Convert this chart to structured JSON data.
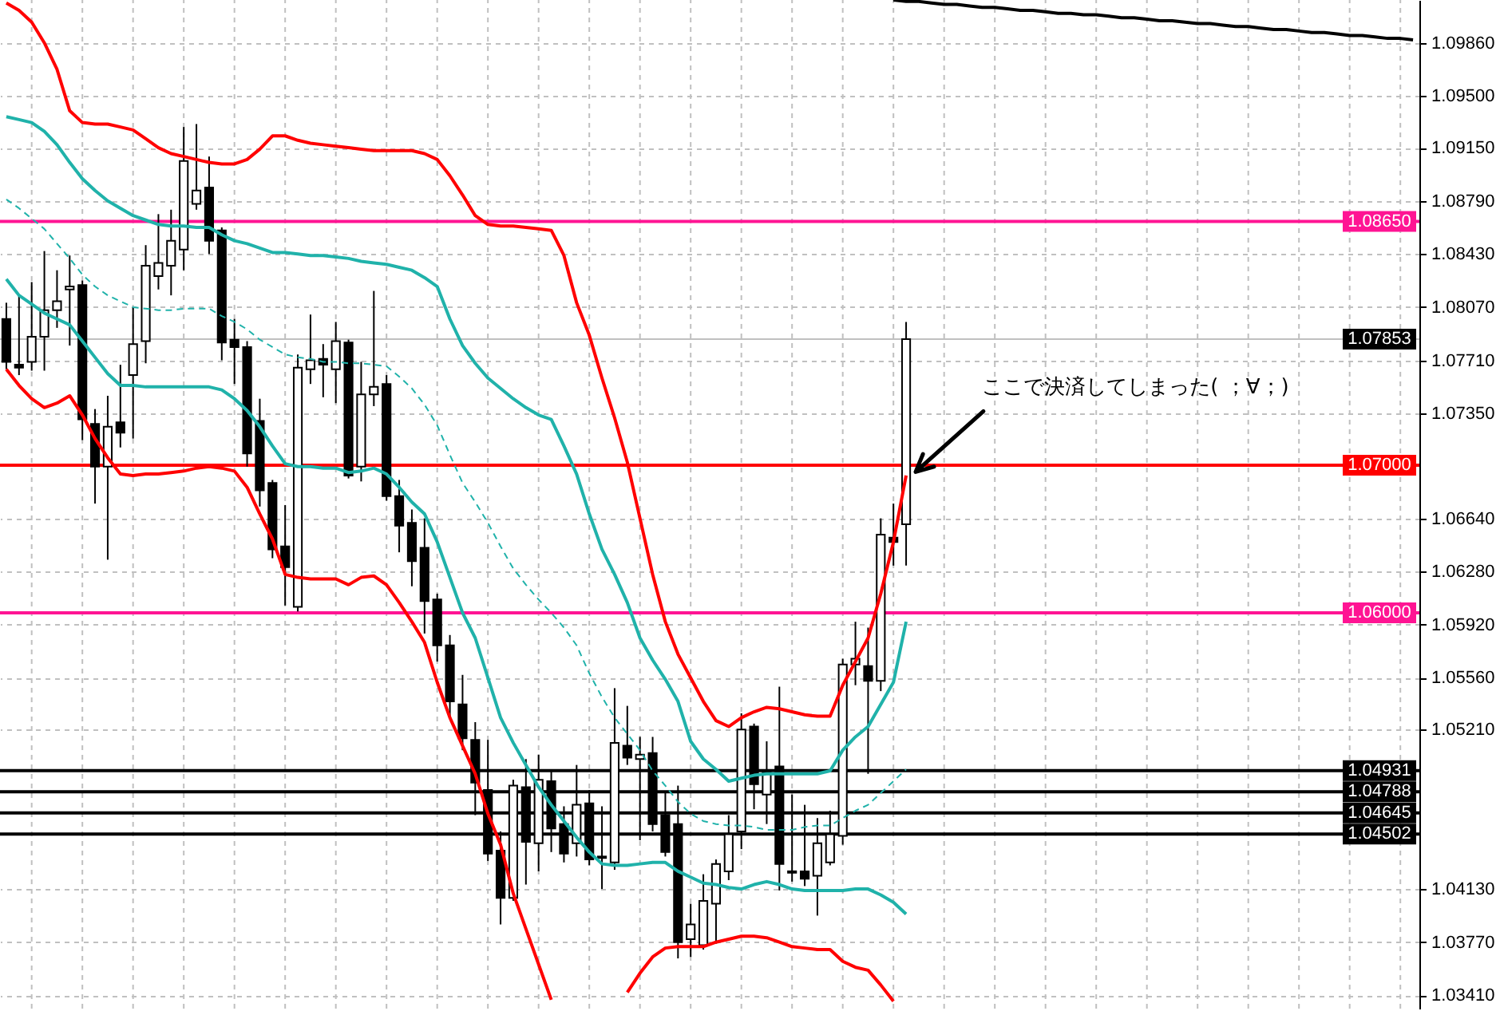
{
  "chart_data": {
    "type": "candlestick",
    "color": "#000000",
    "categories": [
      null,
      null,
      null,
      null,
      null,
      null,
      null,
      null,
      null,
      null,
      null,
      null,
      null,
      null,
      null,
      null,
      null,
      null,
      null,
      null,
      null,
      null,
      null,
      null,
      null,
      null,
      null,
      null,
      null,
      null,
      null,
      null,
      null,
      null,
      null,
      null,
      null,
      null,
      null,
      null,
      null,
      null,
      null,
      null,
      null,
      null,
      null,
      null,
      null,
      null,
      null,
      null,
      null,
      null,
      null,
      null,
      null,
      null,
      null,
      null,
      null,
      null,
      null,
      null,
      null,
      null,
      null,
      null,
      null,
      null,
      null,
      null,
      null,
      null,
      null,
      null,
      null,
      null,
      null,
      null,
      null,
      null,
      null,
      null,
      null,
      null,
      null,
      null,
      null,
      null,
      null,
      null,
      null,
      null,
      null,
      null,
      null,
      null,
      null,
      null,
      null,
      null,
      null,
      null,
      null,
      null,
      null,
      null,
      null,
      null,
      null,
      null
    ],
    "ohlc": [
      [
        1.0799,
        1.081,
        1.0765,
        1.077
      ],
      [
        1.0768,
        1.0815,
        1.0761,
        1.0766
      ],
      [
        1.077,
        1.0824,
        1.0764,
        1.0787
      ],
      [
        1.0787,
        1.0845,
        1.0764,
        1.0805
      ],
      [
        1.0805,
        1.0832,
        1.0793,
        1.0811
      ],
      [
        1.0819,
        1.0842,
        1.0781,
        1.0821
      ],
      [
        1.0822,
        1.0825,
        1.0717,
        1.0731
      ],
      [
        1.0728,
        1.0738,
        1.0674,
        1.0699
      ],
      [
        1.0699,
        1.0747,
        1.0636,
        1.0726
      ],
      [
        1.0729,
        1.0768,
        1.0712,
        1.0722
      ],
      [
        1.0761,
        1.0807,
        1.0718,
        1.0782
      ],
      [
        1.0784,
        1.0849,
        1.0769,
        1.0835
      ],
      [
        1.0828,
        1.087,
        1.0819,
        1.0837
      ],
      [
        1.0835,
        1.0873,
        1.0815,
        1.0852
      ],
      [
        1.0846,
        1.0929,
        1.0832,
        1.0906
      ],
      [
        1.0877,
        1.0931,
        1.0873,
        1.0886
      ],
      [
        1.0888,
        1.0909,
        1.0843,
        1.0852
      ],
      [
        1.0859,
        1.0861,
        1.0771,
        1.0783
      ],
      [
        1.0785,
        1.0799,
        1.0755,
        1.078
      ],
      [
        1.078,
        1.0784,
        1.0699,
        1.0708
      ],
      [
        1.073,
        1.0745,
        1.0672,
        1.0683
      ],
      [
        1.0688,
        1.069,
        1.0637,
        1.0643
      ],
      [
        1.0645,
        1.0673,
        1.0605,
        1.0631
      ],
      [
        1.0604,
        1.0775,
        1.0601,
        1.0766
      ],
      [
        1.0765,
        1.0802,
        1.0755,
        1.0771
      ],
      [
        1.0772,
        1.0782,
        1.0746,
        1.0768
      ],
      [
        1.0765,
        1.0797,
        1.0742,
        1.0784
      ],
      [
        1.0783,
        1.0785,
        1.0691,
        1.0693
      ],
      [
        1.0699,
        1.077,
        1.0689,
        1.0748
      ],
      [
        1.0748,
        1.0818,
        1.074,
        1.0753
      ],
      [
        1.0755,
        1.0761,
        1.0676,
        1.0679
      ],
      [
        1.0679,
        1.069,
        1.0641,
        1.0659
      ],
      [
        1.0661,
        1.067,
        1.0618,
        1.0635
      ],
      [
        1.0644,
        1.0664,
        1.0586,
        1.0608
      ],
      [
        1.0609,
        1.0613,
        1.0567,
        1.0578
      ],
      [
        1.0578,
        1.0585,
        1.0529,
        1.054
      ],
      [
        1.0538,
        1.0558,
        1.0507,
        1.0515
      ],
      [
        1.0514,
        1.0526,
        1.0463,
        1.0485
      ],
      [
        1.048,
        1.0514,
        1.0432,
        1.0437
      ],
      [
        1.0439,
        1.0452,
        1.0389,
        1.0407
      ],
      [
        1.0407,
        1.0487,
        1.0405,
        1.0483
      ],
      [
        1.0482,
        1.0501,
        1.0416,
        1.0445
      ],
      [
        1.0444,
        1.0504,
        1.0425,
        1.0487
      ],
      [
        1.0486,
        1.0493,
        1.0438,
        1.0454
      ],
      [
        1.0457,
        1.0469,
        1.0431,
        1.0437
      ],
      [
        1.0444,
        1.0497,
        1.0435,
        1.047
      ],
      [
        1.0471,
        1.048,
        1.0429,
        1.0433
      ],
      [
        1.0435,
        1.0469,
        1.0413,
        1.0434
      ],
      [
        1.0431,
        1.0549,
        1.0426,
        1.0512
      ],
      [
        1.051,
        1.0537,
        1.0497,
        1.0502
      ],
      [
        1.0501,
        1.0516,
        1.0446,
        1.0504
      ],
      [
        1.0505,
        1.0516,
        1.0452,
        1.0457
      ],
      [
        1.0463,
        1.0478,
        1.0435,
        1.0438
      ],
      [
        1.0457,
        1.0483,
        1.0366,
        1.0377
      ],
      [
        1.0379,
        1.0403,
        1.0367,
        1.0389
      ],
      [
        1.0375,
        1.0423,
        1.0372,
        1.0405
      ],
      [
        1.0403,
        1.0433,
        1.0376,
        1.043
      ],
      [
        1.0425,
        1.0463,
        1.0419,
        1.045
      ],
      [
        1.0452,
        1.0532,
        1.044,
        1.0521
      ],
      [
        1.0523,
        1.0525,
        1.0467,
        1.0484
      ],
      [
        1.0477,
        1.0513,
        1.0457,
        1.0492
      ],
      [
        1.0496,
        1.055,
        1.0412,
        1.043
      ],
      [
        1.0425,
        1.0477,
        1.0418,
        1.0424
      ],
      [
        1.0425,
        1.047,
        1.0415,
        1.042
      ],
      [
        1.0422,
        1.0461,
        1.0395,
        1.0444
      ],
      [
        1.0431,
        1.0466,
        1.0429,
        1.045
      ],
      [
        1.0449,
        1.0569,
        1.0443,
        1.0565
      ],
      [
        1.0565,
        1.0594,
        1.0551,
        1.0569
      ],
      [
        1.0564,
        1.059,
        1.0491,
        1.0554
      ],
      [
        1.0554,
        1.0664,
        1.0547,
        1.0653
      ],
      [
        1.0651,
        1.0674,
        1.0632,
        1.0648
      ],
      [
        1.066,
        1.0797,
        1.0632,
        1.07853
      ],
      null,
      null,
      null,
      null,
      null,
      null,
      null,
      null,
      null,
      null,
      null,
      null,
      null,
      null,
      null,
      null,
      null,
      null,
      null,
      null,
      null,
      null,
      null,
      null,
      null,
      null,
      null,
      null,
      null,
      null,
      null,
      null,
      null,
      null,
      null,
      null,
      null,
      null,
      null,
      null
    ],
    "series": [
      {
        "type": "line",
        "color": "#ff0000",
        "values": [
          1.1013,
          1.1008,
          1.1,
          1.0986,
          1.0968,
          1.094,
          1.0932,
          1.0931,
          1.0931,
          1.0929,
          1.0927,
          1.0921,
          1.0915,
          1.0911,
          1.0909,
          1.0907,
          1.0905,
          1.0904,
          1.0904,
          1.0907,
          1.0914,
          1.0923,
          1.0923,
          1.092,
          1.0918,
          1.0917,
          1.0916,
          1.0915,
          1.0914,
          1.0913,
          1.0913,
          1.0913,
          1.0913,
          1.0911,
          1.0907,
          1.0896,
          1.0883,
          1.0869,
          1.0863,
          1.0862,
          1.0862,
          1.0861,
          1.086,
          1.0859,
          1.0842,
          1.081,
          1.0788,
          1.0759,
          1.0732,
          1.0702,
          1.0664,
          1.0626,
          1.0594,
          1.0572,
          1.0556,
          1.054,
          1.0527,
          1.0523,
          1.0529,
          1.0533,
          1.0536,
          1.0535,
          1.0533,
          1.0531,
          1.053,
          1.053,
          1.0551,
          1.0567,
          1.0583,
          1.0613,
          1.0648,
          1.0693,
          null,
          null,
          null,
          null,
          null,
          null,
          null,
          null,
          null,
          null,
          null,
          null,
          null,
          null,
          null,
          null,
          null,
          null,
          null,
          null,
          null,
          null,
          null,
          null,
          null,
          null,
          null,
          null,
          null,
          null,
          null,
          null,
          null,
          null,
          null,
          null,
          null,
          null,
          null,
          null
        ]
      },
      {
        "type": "line",
        "color": "#20b2aa",
        "values": [
          1.0936,
          1.0934,
          1.0932,
          1.0926,
          1.0917,
          1.0905,
          1.0894,
          1.0886,
          1.0879,
          1.0874,
          1.0869,
          1.0866,
          1.0863,
          1.0862,
          1.0862,
          1.0861,
          1.0861,
          1.0856,
          1.0852,
          1.085,
          1.0847,
          1.0844,
          1.0844,
          1.0843,
          1.0842,
          1.0842,
          1.0841,
          1.084,
          1.0838,
          1.0837,
          1.0836,
          1.0834,
          1.0832,
          1.0827,
          1.0821,
          1.0799,
          1.0781,
          1.0769,
          1.0759,
          1.0752,
          1.0745,
          1.0739,
          1.0734,
          1.0731,
          1.0713,
          1.0694,
          1.0667,
          1.0643,
          1.0626,
          1.0607,
          1.0583,
          1.0568,
          1.0555,
          1.054,
          1.0513,
          1.0501,
          1.0494,
          1.0486,
          1.0488,
          1.049,
          1.0491,
          1.0491,
          1.0491,
          1.0491,
          1.0491,
          1.0493,
          1.0507,
          1.0516,
          1.0523,
          1.0538,
          1.0553,
          1.0594,
          null,
          null,
          null,
          null,
          null,
          null,
          null,
          null,
          null,
          null,
          null,
          null,
          null,
          null,
          null,
          null,
          null,
          null,
          null,
          null,
          null,
          null,
          null,
          null,
          null,
          null,
          null,
          null,
          null,
          null,
          null,
          null,
          null,
          null,
          null,
          null,
          null,
          null,
          null,
          null
        ]
      },
      {
        "type": "line",
        "color": "#20b2aa",
        "line_style": "dashed",
        "values": [
          1.088,
          1.0874,
          1.0867,
          1.086,
          1.085,
          1.084,
          1.0829,
          1.0821,
          1.0815,
          1.0811,
          1.0807,
          1.0806,
          1.0805,
          1.0805,
          1.0806,
          1.0806,
          1.0806,
          1.0801,
          1.0797,
          1.0792,
          1.0785,
          1.078,
          1.0775,
          1.0773,
          1.0772,
          1.077,
          1.077,
          1.0769,
          1.0769,
          1.0768,
          1.0767,
          1.076,
          1.0752,
          1.0741,
          1.0727,
          1.0707,
          1.0688,
          1.0675,
          1.0661,
          1.0645,
          1.063,
          1.0619,
          1.0609,
          1.06,
          1.059,
          1.0578,
          1.0559,
          1.0543,
          1.0529,
          1.0518,
          1.0507,
          1.0493,
          1.0483,
          1.0472,
          1.0464,
          1.0459,
          1.0457,
          1.0456,
          1.0456,
          1.0455,
          1.0453,
          1.0453,
          1.0453,
          1.0455,
          1.0456,
          1.0456,
          1.0461,
          1.0466,
          1.047,
          1.0478,
          1.0486,
          1.0494,
          null,
          null,
          null,
          null,
          null,
          null,
          null,
          null,
          null,
          null,
          null,
          null,
          null,
          null,
          null,
          null,
          null,
          null,
          null,
          null,
          null,
          null,
          null,
          null,
          null,
          null,
          null,
          null,
          null,
          null,
          null,
          null,
          null,
          null,
          null,
          null,
          null,
          null,
          null,
          null
        ]
      },
      {
        "type": "line",
        "color": "#20b2aa",
        "values": [
          1.0826,
          1.0815,
          1.0809,
          1.0803,
          1.0799,
          1.0795,
          1.0784,
          1.0773,
          1.0762,
          1.0754,
          1.0754,
          1.0753,
          1.0753,
          1.0753,
          1.0753,
          1.0753,
          1.0753,
          1.0751,
          1.0745,
          1.0737,
          1.0726,
          1.0713,
          1.0701,
          1.0699,
          1.0699,
          1.0698,
          1.0698,
          1.0695,
          1.0696,
          1.0698,
          1.0694,
          1.0685,
          1.0675,
          1.0667,
          1.0648,
          1.0624,
          1.06,
          1.0583,
          1.0556,
          1.0529,
          1.0512,
          1.0497,
          1.0482,
          1.047,
          1.0459,
          1.0448,
          1.0438,
          1.043,
          1.0429,
          1.0429,
          1.043,
          1.0431,
          1.0431,
          1.0425,
          1.0421,
          1.0417,
          1.0416,
          1.0414,
          1.0413,
          1.0416,
          1.0418,
          1.0416,
          1.0413,
          1.0412,
          1.0412,
          1.0412,
          1.0412,
          1.0413,
          1.0413,
          1.0409,
          1.0404,
          1.0396,
          null,
          null,
          null,
          null,
          null,
          null,
          null,
          null,
          null,
          null,
          null,
          null,
          null,
          null,
          null,
          null,
          null,
          null,
          null,
          null,
          null,
          null,
          null,
          null,
          null,
          null,
          null,
          null,
          null,
          null,
          null,
          null,
          null,
          null,
          null,
          null,
          null,
          null,
          null,
          null
        ]
      },
      {
        "type": "line",
        "color": "#ff0000",
        "values": [
          1.0765,
          1.0754,
          1.0745,
          1.0739,
          1.0742,
          1.0747,
          1.0734,
          1.0718,
          1.0705,
          1.0694,
          1.0693,
          1.0694,
          1.0694,
          1.0695,
          1.0696,
          1.0698,
          1.0699,
          1.0698,
          1.0696,
          1.0685,
          1.0667,
          1.065,
          1.0626,
          1.0624,
          1.0623,
          1.0623,
          1.0623,
          1.0619,
          1.0624,
          1.0625,
          1.0619,
          1.0607,
          1.0594,
          1.058,
          1.0553,
          1.0529,
          1.051,
          1.0491,
          1.0464,
          1.0443,
          1.041,
          1.0386,
          1.0362,
          1.0338,
          null,
          null,
          null,
          null,
          null,
          1.0343,
          1.0356,
          1.0367,
          1.0373,
          1.0374,
          1.0374,
          1.0374,
          1.0377,
          1.0379,
          1.0381,
          1.0381,
          1.038,
          1.0377,
          1.0374,
          1.0373,
          1.0372,
          1.0372,
          1.0364,
          1.036,
          1.0358,
          1.0348,
          1.0337,
          null,
          null,
          null,
          null,
          null,
          null,
          null,
          null,
          null,
          null,
          null,
          null,
          null,
          null,
          null,
          null,
          null,
          null,
          null,
          null,
          null,
          null,
          null,
          null,
          null,
          null,
          null,
          null,
          null,
          null,
          null,
          null,
          null,
          null,
          null,
          null,
          null,
          null,
          null,
          null,
          null
        ]
      },
      {
        "type": "line",
        "color": "#000000",
        "values": [
          null,
          null,
          null,
          null,
          null,
          null,
          null,
          null,
          null,
          null,
          null,
          null,
          null,
          null,
          null,
          null,
          null,
          null,
          null,
          null,
          null,
          null,
          null,
          null,
          null,
          null,
          null,
          null,
          null,
          null,
          null,
          null,
          null,
          null,
          null,
          null,
          null,
          null,
          null,
          null,
          null,
          null,
          null,
          null,
          null,
          null,
          null,
          null,
          null,
          null,
          null,
          null,
          null,
          null,
          null,
          null,
          null,
          null,
          null,
          null,
          null,
          null,
          null,
          null,
          null,
          null,
          null,
          null,
          null,
          null,
          1.1015,
          1.1014,
          1.1014,
          1.1013,
          1.1012,
          1.1012,
          1.1011,
          1.101,
          1.101,
          1.1009,
          1.1008,
          1.1008,
          1.1007,
          1.1006,
          1.1006,
          1.1005,
          1.1005,
          1.1004,
          1.1003,
          1.1003,
          1.1002,
          1.1001,
          1.1001,
          1.1,
          1.0999,
          1.0999,
          1.0998,
          1.0997,
          1.0997,
          1.0996,
          1.0995,
          1.0995,
          1.0994,
          1.0993,
          1.0993,
          1.0992,
          1.0991,
          1.0991,
          1.099,
          1.0989,
          1.0989,
          1.0988
        ]
      }
    ],
    "ylim": [
      1.0332,
      1.1015
    ],
    "yticks": [
      {
        "value": 1.0986,
        "label": "1.09860"
      },
      {
        "value": 1.095,
        "label": "1.09500"
      },
      {
        "value": 1.0915,
        "label": "1.09150"
      },
      {
        "value": 1.0879,
        "label": "1.08790"
      },
      {
        "value": 1.0843,
        "label": "1.08430"
      },
      {
        "value": 1.0807,
        "label": "1.08070"
      },
      {
        "value": 1.0771,
        "label": "1.07710"
      },
      {
        "value": 1.0735,
        "label": "1.07350"
      },
      {
        "value": 1.0664,
        "label": "1.06640"
      },
      {
        "value": 1.0628,
        "label": "1.06280"
      },
      {
        "value": 1.0592,
        "label": "1.05920"
      },
      {
        "value": 1.0556,
        "label": "1.05560"
      },
      {
        "value": 1.0521,
        "label": "1.05210"
      },
      {
        "value": 1.0413,
        "label": "1.04130"
      },
      {
        "value": 1.0377,
        "label": "1.03770"
      },
      {
        "value": 1.0341,
        "label": "1.03410"
      }
    ],
    "grid": true,
    "ref_lines": [
      {
        "axis": "y",
        "value": 1.0865,
        "label": "1.08650",
        "color": "#ff1493"
      },
      {
        "axis": "y",
        "value": 1.07853,
        "label": "1.07853",
        "color": "#c0c0c0"
      },
      {
        "axis": "y",
        "value": 1.07,
        "label": "1.07000",
        "color": "#ff0000"
      },
      {
        "axis": "y",
        "value": 1.06,
        "label": "1.06000",
        "color": "#ff1493"
      },
      {
        "axis": "y",
        "value": 1.04931,
        "label": "1.04931",
        "color": "#000000"
      },
      {
        "axis": "y",
        "value": 1.04788,
        "label": "1.04788",
        "color": "#000000"
      },
      {
        "axis": "y",
        "value": 1.04645,
        "label": "1.04645",
        "color": "#000000"
      },
      {
        "axis": "y",
        "value": 1.04502,
        "label": "1.04502",
        "color": "#000000"
      }
    ],
    "annotations": [
      "ここで決済してしまった( ；∀；)"
    ]
  }
}
